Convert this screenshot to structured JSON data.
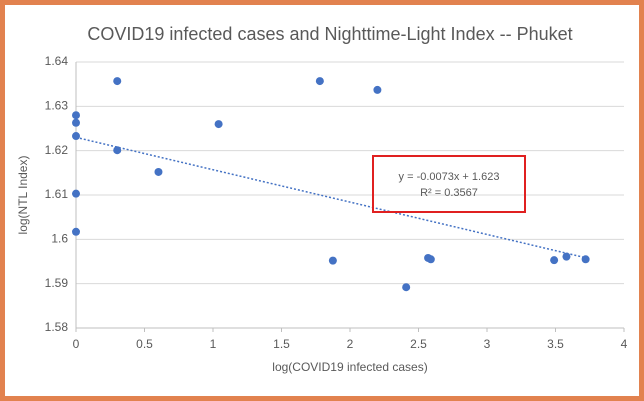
{
  "chart_data": {
    "type": "scatter",
    "title": "COVID19 infected cases and Nighttime-Light Index -- Phuket",
    "x_label": "log(COVID19 infected cases)",
    "y_label": "log(NTL Index)",
    "series": [
      {
        "name": "Phuket",
        "color": "#4472c4",
        "x": [
          0,
          0,
          0,
          0,
          0,
          0.301,
          0.301,
          0.602,
          1.041,
          1.78,
          2.2,
          1.875,
          2.41,
          2.57,
          2.59,
          3.49,
          3.58,
          3.72
        ],
        "values": [
          1.628,
          1.6263,
          1.6233,
          1.6103,
          1.6017,
          1.6357,
          1.6201,
          1.6152,
          1.626,
          1.6357,
          1.6337,
          1.5952,
          1.5892,
          1.5958,
          1.5955,
          1.5953,
          1.5961,
          1.5955
        ]
      }
    ],
    "trendline": {
      "slope": -0.0073,
      "intercept": 1.623,
      "equation": "y = -0.0073x + 1.623",
      "r2": 0.3567,
      "r2_label": "R² = 0.3567"
    },
    "xlim": [
      0,
      4
    ],
    "xticks": [
      0,
      0.5,
      1,
      1.5,
      2,
      2.5,
      3,
      3.5,
      4
    ],
    "ylim": [
      1.58,
      1.64
    ],
    "yticks": [
      1.58,
      1.59,
      1.6,
      1.61,
      1.62,
      1.63,
      1.64
    ],
    "grid": true
  }
}
